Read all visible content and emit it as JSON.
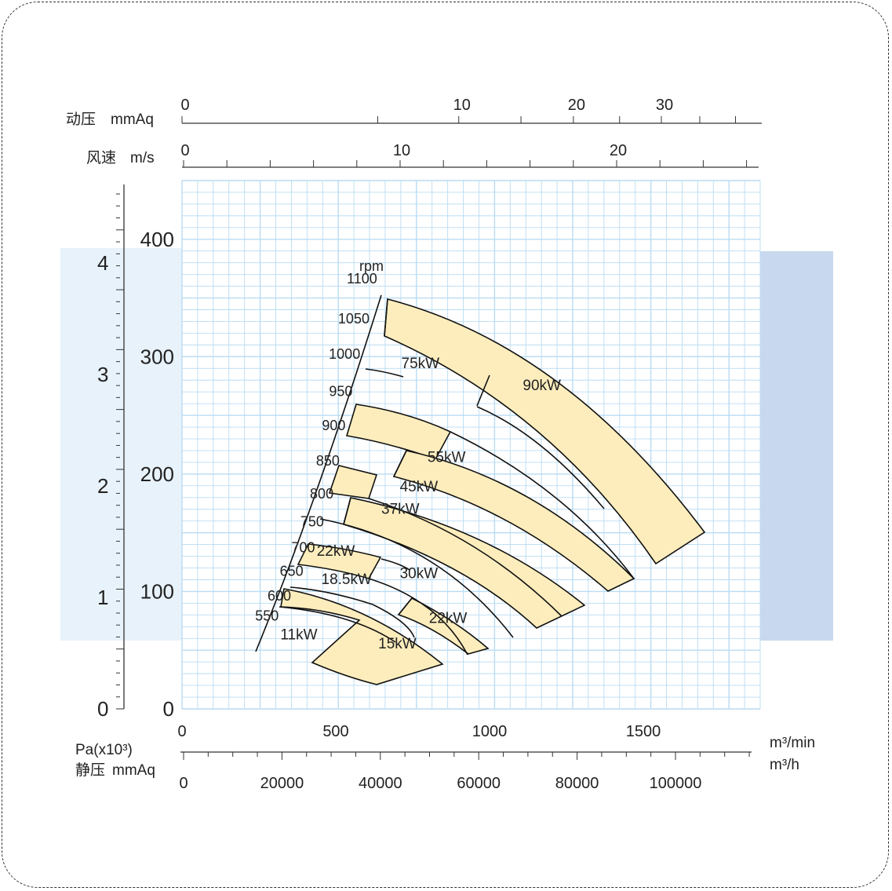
{
  "chart_data": {
    "type": "fan-performance-curve",
    "colors": {
      "grid": "#b9dcf3",
      "band_fill": "#fdedbd",
      "left_panel": "#e8f2fb",
      "right_panel": "#c8d8ee",
      "line": "#111111"
    },
    "axes": {
      "top_dynamic_pressure": {
        "label_cn": "动压",
        "unit": "mmAq",
        "labels": [
          {
            "text": "0",
            "value": 0
          },
          {
            "text": "10",
            "value": 10
          },
          {
            "text": "20",
            "value": 20
          },
          {
            "text": "30",
            "value": 30
          }
        ]
      },
      "top_air_velocity": {
        "label_cn": "风速",
        "unit": "m/s",
        "labels": [
          {
            "text": "0",
            "value": 0
          },
          {
            "text": "10",
            "value": 10
          },
          {
            "text": "20",
            "value": 20
          }
        ]
      },
      "left_pa": {
        "labels": [
          {
            "text": "0",
            "value": 0
          },
          {
            "text": "1",
            "value": 1
          },
          {
            "text": "2",
            "value": 2
          },
          {
            "text": "3",
            "value": 3
          },
          {
            "text": "4",
            "value": 4
          }
        ]
      },
      "left_static_pressure": {
        "range": [
          0,
          450
        ],
        "labels": [
          {
            "text": "0",
            "value": 0
          },
          {
            "text": "100",
            "value": 100
          },
          {
            "text": "200",
            "value": 200
          },
          {
            "text": "300",
            "value": 300
          },
          {
            "text": "400",
            "value": 400
          }
        ]
      },
      "bottom_flow_per_min": {
        "range": [
          0,
          1880
        ],
        "unit": "m³/min",
        "labels": [
          {
            "text": "0",
            "value": 0
          },
          {
            "text": "500",
            "value": 500
          },
          {
            "text": "1000",
            "value": 1000
          },
          {
            "text": "1500",
            "value": 1500
          }
        ]
      },
      "bottom_flow_per_hour": {
        "unit": "m³/h",
        "labels": [
          {
            "text": "0",
            "value": 0
          },
          {
            "text": "20000",
            "value": 20000
          },
          {
            "text": "40000",
            "value": 40000
          },
          {
            "text": "60000",
            "value": 60000
          },
          {
            "text": "80000",
            "value": 80000
          },
          {
            "text": "100000",
            "value": 100000
          }
        ]
      },
      "pressure_unit_line1": "Pa(x10³)",
      "pressure_unit_line2_cn": "静压",
      "pressure_unit_line2_unit": "mmAq"
    },
    "rpm_title": "rpm",
    "rpm_labels": [
      {
        "text": "1100",
        "flow": 655,
        "p": 367
      },
      {
        "text": "1050",
        "flow": 630,
        "p": 333
      },
      {
        "text": "1000",
        "flow": 600,
        "p": 303
      },
      {
        "text": "950",
        "flow": 575,
        "p": 271
      },
      {
        "text": "900",
        "flow": 552,
        "p": 242
      },
      {
        "text": "850",
        "flow": 533,
        "p": 212
      },
      {
        "text": "800",
        "flow": 513,
        "p": 184
      },
      {
        "text": "750",
        "flow": 482,
        "p": 160
      },
      {
        "text": "700",
        "flow": 453,
        "p": 138
      },
      {
        "text": "650",
        "flow": 415,
        "p": 118
      },
      {
        "text": "600",
        "flow": 375,
        "p": 97
      },
      {
        "text": "550",
        "flow": 335,
        "p": 80
      }
    ],
    "power_labels": [
      {
        "text": "90kW",
        "flow": 1170,
        "p": 276
      },
      {
        "text": "75kW",
        "flow": 775,
        "p": 295
      },
      {
        "text": "55kW",
        "flow": 860,
        "p": 215
      },
      {
        "text": "45kW",
        "flow": 770,
        "p": 190
      },
      {
        "text": "37kW",
        "flow": 710,
        "p": 171
      },
      {
        "text": "22kW",
        "flow": 500,
        "p": 135
      },
      {
        "text": "30kW",
        "flow": 770,
        "p": 116
      },
      {
        "text": "18.5kW",
        "flow": 535,
        "p": 111
      },
      {
        "text": "22kW",
        "flow": 865,
        "p": 78
      },
      {
        "text": "15kW",
        "flow": 700,
        "p": 56
      },
      {
        "text": "11kW",
        "flow": 380,
        "p": 64
      }
    ],
    "system_boundary": [
      [
        247,
        51
      ],
      [
        340,
        160
      ],
      [
        410,
        238
      ],
      [
        470,
        303
      ],
      [
        540,
        370
      ],
      [
        580,
        390
      ],
      [
        648,
        377
      ]
    ],
    "speed_curves": [
      {
        "rpm": 1100,
        "points": [
          [
            670,
            362
          ],
          [
            980,
            309
          ],
          [
            1280,
            227
          ],
          [
            1510,
            153
          ],
          [
            1700,
            155
          ]
        ]
      },
      {
        "rpm": 1050,
        "points": [
          [
            655,
            331
          ],
          [
            940,
            280
          ],
          [
            1200,
            206
          ],
          [
            1370,
            148
          ],
          [
            1580,
            132
          ]
        ]
      },
      {
        "rpm": 950,
        "points": [
          [
            612,
            271
          ],
          [
            800,
            247
          ],
          [
            1010,
            193
          ],
          [
            1175,
            130
          ],
          [
            1280,
            110
          ]
        ]
      },
      {
        "rpm": 900,
        "points": [
          [
            587,
            241
          ],
          [
            930,
            199
          ],
          [
            1100,
            138
          ],
          [
            1200,
            110
          ]
        ]
      },
      {
        "rpm": 850,
        "points": [
          [
            572,
            216
          ],
          [
            740,
            190
          ],
          [
            960,
            136
          ],
          [
            1110,
            77
          ],
          [
            1220,
            62
          ]
        ]
      },
      {
        "rpm": 800,
        "points": [
          [
            548,
            193
          ],
          [
            900,
            140
          ],
          [
            1050,
            78
          ],
          [
            1160,
            55
          ]
        ]
      },
      {
        "rpm": 750,
        "points": [
          [
            525,
            168
          ],
          [
            780,
            127
          ],
          [
            960,
            70
          ],
          [
            1040,
            64
          ]
        ]
      },
      {
        "rpm": 700,
        "points": [
          [
            513,
            146
          ],
          [
            690,
            126
          ],
          [
            790,
            110
          ],
          [
            980,
            56
          ]
        ]
      },
      {
        "rpm": 600,
        "points": [
          [
            467,
            109
          ],
          [
            650,
            94
          ],
          [
            840,
            48
          ],
          [
            930,
            55
          ]
        ]
      },
      {
        "rpm": 550,
        "points": [
          [
            448,
            92
          ],
          [
            560,
            78
          ],
          [
            720,
            58
          ],
          [
            840,
            41
          ],
          [
            910,
            55
          ]
        ]
      }
    ],
    "power_bands": [
      {
        "rpm_range": [
          1050,
          1100
        ],
        "power": "90kW",
        "flow_range": [
          655,
          1700
        ]
      },
      {
        "rpm_range": [
          900,
          950
        ],
        "power": "75kW",
        "flow_range": [
          612,
          870
        ]
      },
      {
        "rpm_range": [
          800,
          850
        ],
        "power": "55kW",
        "flow_range": [
          535,
          1280
        ]
      },
      {
        "rpm_range": [
          700,
          750
        ],
        "power": "37kW",
        "flow_range": [
          520,
          1040
        ]
      },
      {
        "rpm_range": [
          650,
          700
        ],
        "power": "22kW",
        "flow_range": [
          500,
          700
        ]
      },
      {
        "rpm_range": [
          550,
          600
        ],
        "power": "15kW",
        "flow_range": [
          425,
          910
        ]
      }
    ]
  }
}
